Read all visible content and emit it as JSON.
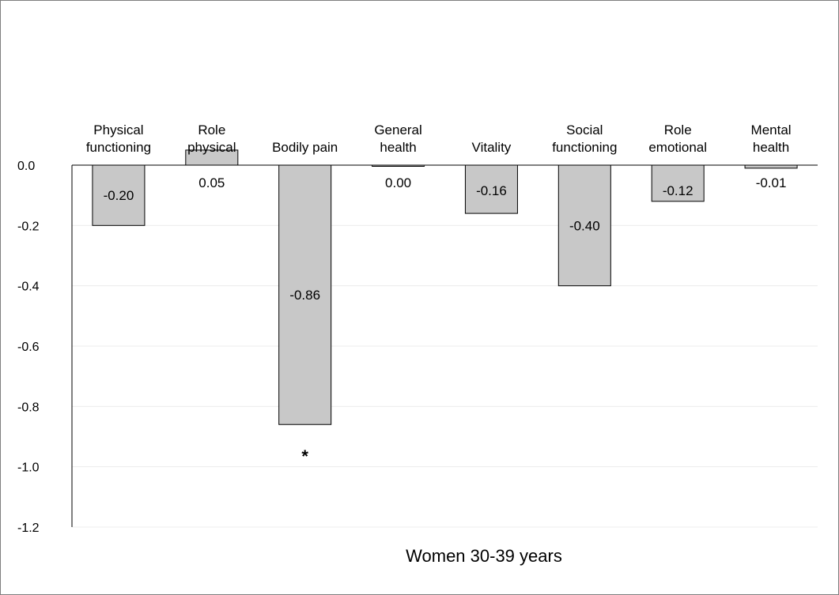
{
  "chart_data": {
    "type": "bar",
    "title": "",
    "xlabel": "Women 30-39 years",
    "ylabel": "",
    "ylim": [
      -1.2,
      0.0
    ],
    "yticks": [
      "0.0",
      "-0.2",
      "-0.4",
      "-0.6",
      "-0.8",
      "-1.0",
      "-1.2"
    ],
    "ytick_values": [
      0.0,
      -0.2,
      -0.4,
      -0.6,
      -0.8,
      -1.0,
      -1.2
    ],
    "grid": true,
    "categories": [
      [
        "Physical",
        "functioning"
      ],
      [
        "Role",
        "physical"
      ],
      [
        "Bodily pain"
      ],
      [
        "General",
        "health"
      ],
      [
        "Vitality"
      ],
      [
        "Social",
        "functioning"
      ],
      [
        "Role",
        "emotional"
      ],
      [
        "Mental",
        "health"
      ]
    ],
    "values": [
      -0.2,
      0.05,
      -0.86,
      0.0,
      -0.16,
      -0.4,
      -0.12,
      -0.01
    ],
    "data_labels": [
      "-0.20",
      "0.05",
      "-0.86",
      "0.00",
      "-0.16",
      "-0.40",
      "-0.12",
      "-0.01"
    ],
    "significance_markers": [
      "",
      "",
      "*",
      "",
      "",
      "",
      "",
      ""
    ],
    "bar_color": "#c8c8c8",
    "bar_edge_color": "#000000"
  }
}
